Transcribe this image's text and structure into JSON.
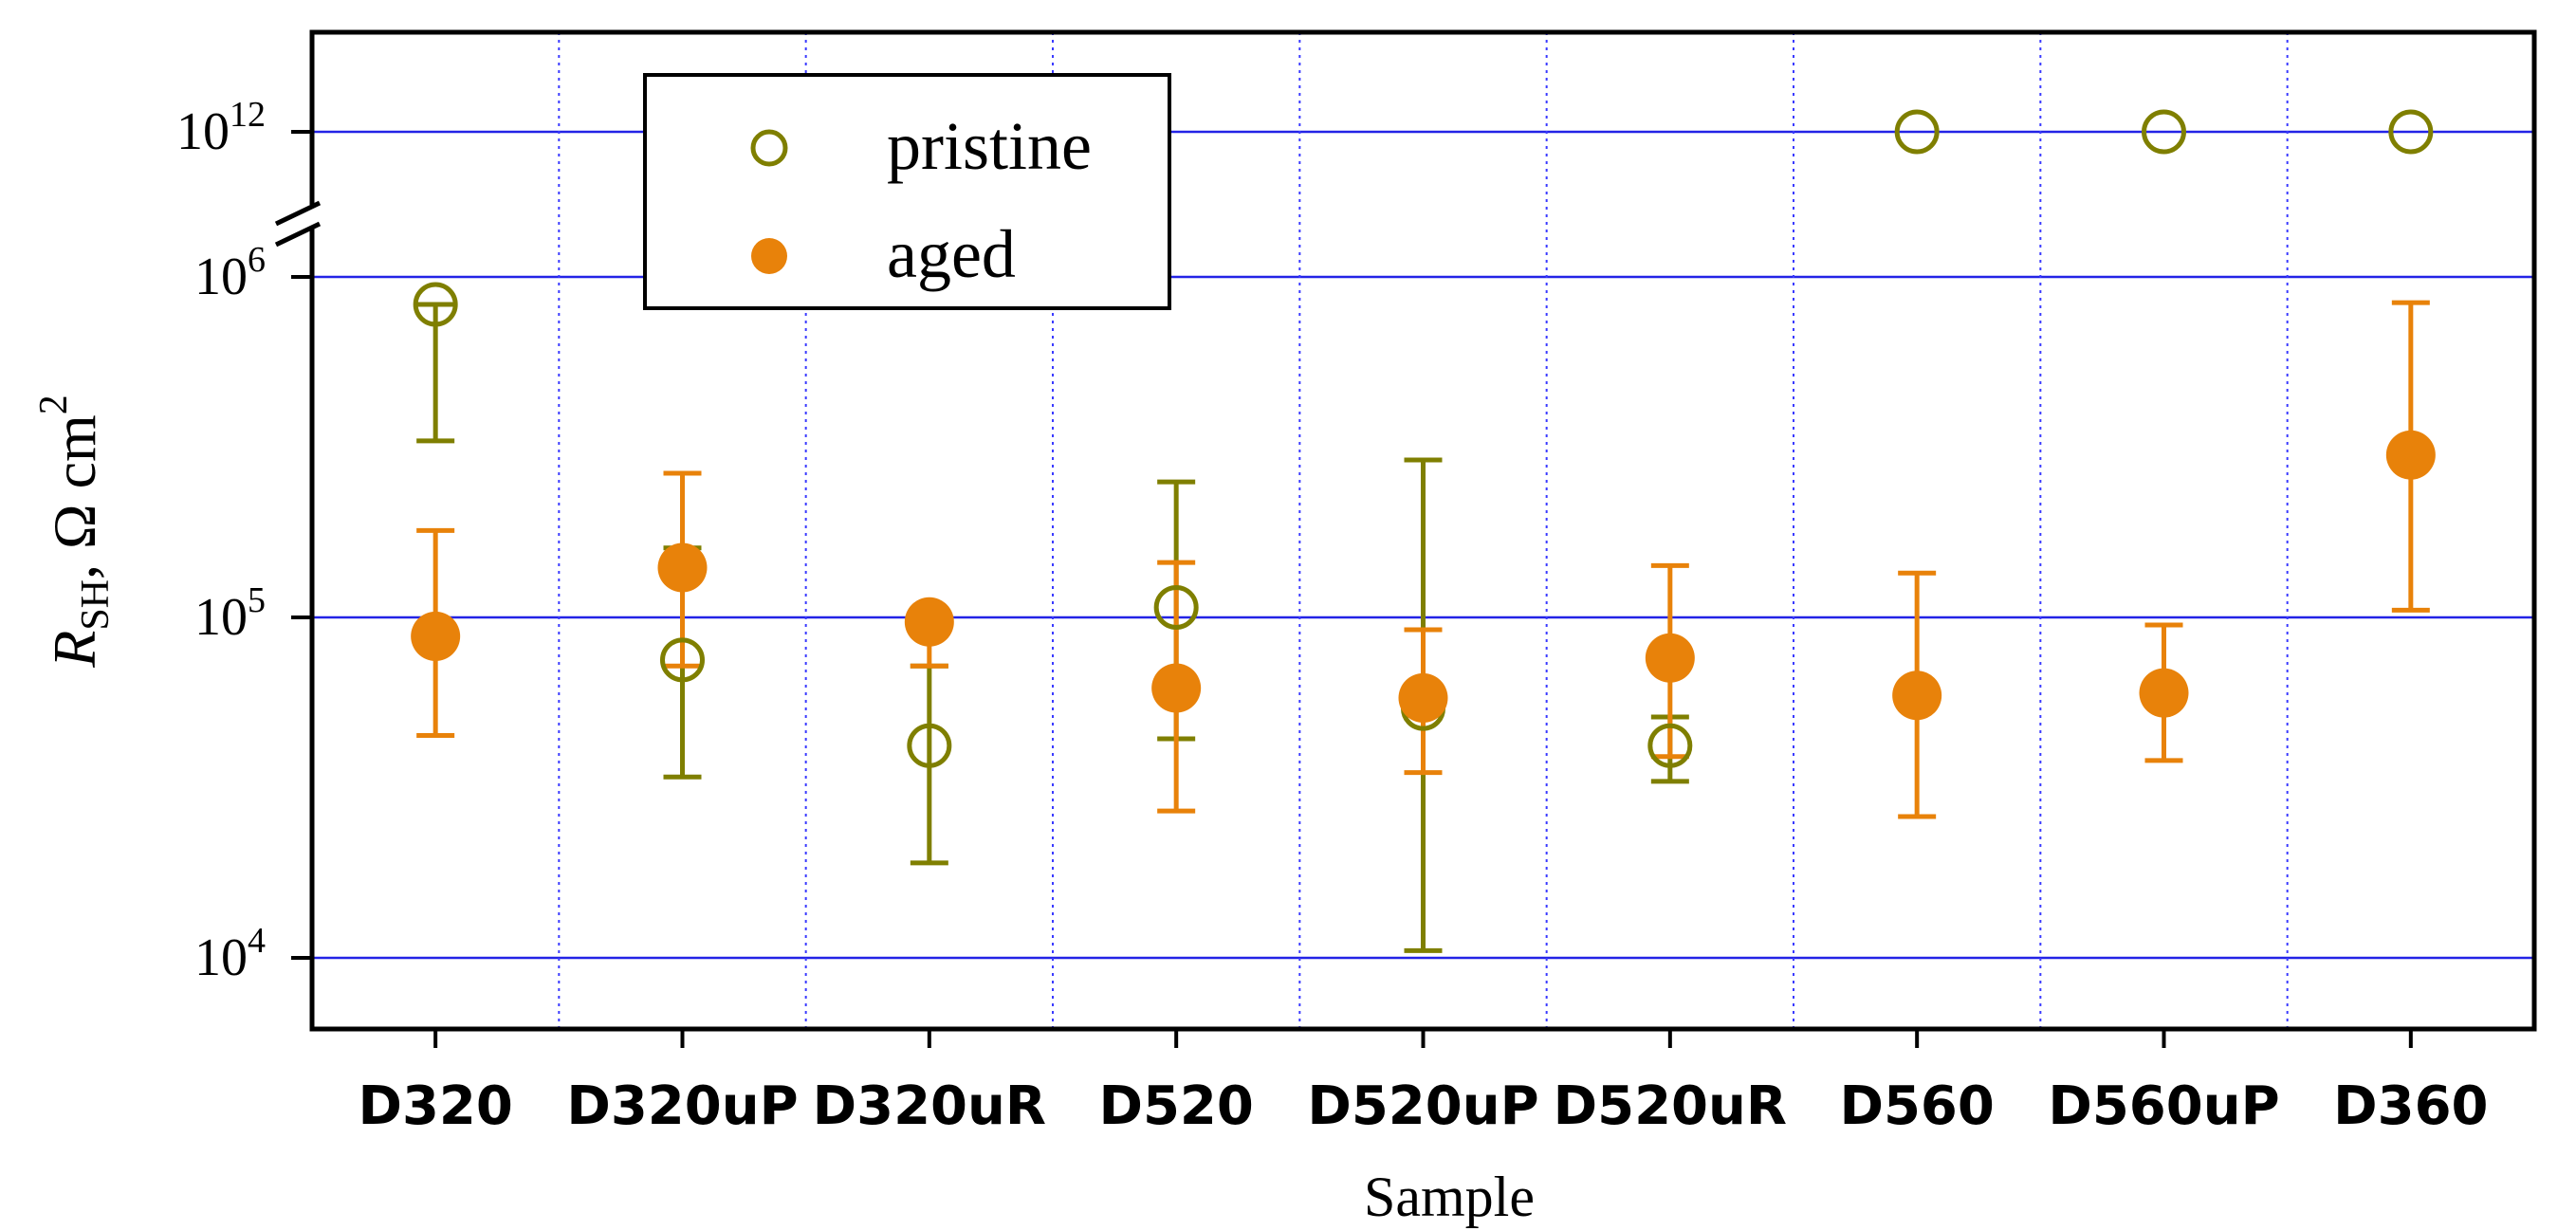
{
  "chart_data": {
    "type": "scatter",
    "xlabel": "Sample",
    "ylabel": {
      "R": "R",
      "sub": "SH",
      "unit": ", Ω cm",
      "sup": "2"
    },
    "y_scale": "log (broken axis)",
    "y_ticks_lower": [
      {
        "base": "10",
        "exp": "4",
        "value": 10000
      },
      {
        "base": "10",
        "exp": "5",
        "value": 100000
      },
      {
        "base": "10",
        "exp": "6",
        "value": 1000000
      }
    ],
    "y_ticks_upper": [
      {
        "base": "10",
        "exp": "12",
        "value": 1000000000000
      }
    ],
    "ylim_lower": [
      10000,
      1000000
    ],
    "grid": "horizontal solid at ticks; vertical dotted between samples",
    "legend_position": "top-left",
    "categories": [
      "D320",
      "D320uP",
      "D320uR",
      "D520",
      "D520uP",
      "D520uR",
      "D560",
      "D560uP",
      "D360"
    ],
    "series": [
      {
        "name": "pristine",
        "color": "#7f7f00",
        "marker": "open-circle",
        "values": [
          830000,
          75000,
          42000,
          107000,
          54000,
          42000,
          1000000000000,
          1000000000000,
          1000000000000
        ],
        "err_low": [
          330000,
          34000,
          19000,
          44000,
          10500,
          33000,
          null,
          null,
          null
        ],
        "err_high": [
          830000,
          160000,
          72000,
          250000,
          290000,
          51000,
          null,
          null,
          null
        ]
      },
      {
        "name": "aged",
        "color": "#e8820a",
        "marker": "filled-circle",
        "values": [
          88000,
          140000,
          97000,
          62000,
          58000,
          76000,
          59000,
          60000,
          300000
        ],
        "err_low": [
          45000,
          72000,
          72000,
          27000,
          35000,
          39000,
          26000,
          38000,
          105000
        ],
        "err_high": [
          180000,
          265000,
          97000,
          145000,
          92000,
          142000,
          135000,
          95000,
          840000
        ]
      }
    ]
  }
}
